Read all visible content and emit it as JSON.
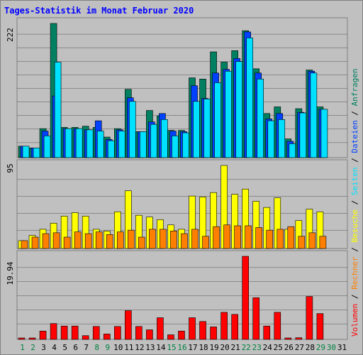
{
  "chart_data": {
    "type": "bar",
    "title": "Tages-Statistik im Monat Februar 2020",
    "colors": {
      "title": "#0000ff",
      "background": "#c0c0c0",
      "panel": "#c0c0c0",
      "grid": "#000000",
      "weekday_label": "#000000",
      "weekend_label": "#008040",
      "anfragen": "#008060",
      "dateien": "#0040ff",
      "seiten": "#00e0ff",
      "besuche": "#ffff00",
      "rechner": "#ff8000",
      "volumen": "#ff0000"
    },
    "days": [
      "1",
      "2",
      "3",
      "4",
      "5",
      "6",
      "7",
      "8",
      "9",
      "10",
      "11",
      "12",
      "13",
      "14",
      "15",
      "16",
      "17",
      "18",
      "19",
      "20",
      "21",
      "22",
      "23",
      "24",
      "25",
      "26",
      "27",
      "28",
      "29",
      "30",
      "31"
    ],
    "weekend_days": [
      "1",
      "2",
      "8",
      "9",
      "15",
      "16",
      "22",
      "23",
      "29",
      "30"
    ],
    "panels": [
      {
        "id": "top",
        "max_label": "222",
        "ymax": 222,
        "series": [
          {
            "name": "Anfragen",
            "values": [
              19,
              16,
              48,
              222,
              50,
              50,
              52,
              50,
              34,
              48,
              113,
              43,
              78,
              69,
              45,
              45,
              132,
              130,
              175,
              158,
              177,
              210,
              147,
              73,
              84,
              31,
              81,
              145,
              84,
              null,
              null
            ]
          },
          {
            "name": "Dateien",
            "values": [
              19,
              16,
              44,
              102,
              48,
              48,
              46,
              61,
              30,
              46,
              99,
              43,
              59,
              73,
              44,
              43,
              119,
              98,
              140,
              146,
              164,
              208,
              140,
              64,
              73,
              27,
              75,
              143,
              80,
              null,
              null
            ]
          },
          {
            "name": "Seiten",
            "values": [
              19,
              16,
              36,
              158,
              48,
              48,
              46,
              44,
              28,
              44,
              93,
              43,
              55,
              63,
              36,
              41,
              93,
              97,
              124,
              143,
              159,
              198,
              130,
              61,
              63,
              23,
              74,
              140,
              80,
              null,
              null
            ]
          }
        ],
        "legend": [
          {
            "text": "Anfragen",
            "color_key": "anfragen"
          },
          {
            "text": "Dateien",
            "color_key": "dateien"
          },
          {
            "text": "Seiten",
            "color_key": "seiten"
          }
        ]
      },
      {
        "id": "middle",
        "max_label": "95",
        "ymax": 95,
        "series": [
          {
            "name": "Besuche",
            "values": [
              9,
              15,
              22,
              29,
              37,
              41,
              37,
              22,
              20,
              42,
              66,
              38,
              36,
              33,
              27,
              22,
              60,
              59,
              64,
              95,
              62,
              68,
              54,
              47,
              58,
              22,
              32,
              45,
              42,
              null,
              null
            ]
          },
          {
            "name": "Rechner",
            "values": [
              9,
              13,
              17,
              18,
              13,
              19,
              17,
              19,
              16,
              19,
              21,
              13,
              22,
              22,
              20,
              17,
              22,
              14,
              25,
              27,
              26,
              26,
              24,
              21,
              22,
              25,
              14,
              18,
              14,
              null,
              null
            ]
          }
        ],
        "legend": [
          {
            "text": "Besuche",
            "color_key": "besuche"
          },
          {
            "text": "Rechner",
            "color_key": "rechner"
          }
        ]
      },
      {
        "id": "bottom",
        "max_label": "19.94",
        "ymax": 19.94,
        "series": [
          {
            "name": "Volumen",
            "values": [
              0.2,
              0.2,
              2.0,
              3.8,
              3.2,
              3.2,
              0.9,
              3.1,
              1.3,
              3.1,
              6.9,
              3.1,
              2.3,
              5.2,
              1.1,
              2.0,
              5.2,
              4.3,
              3.0,
              6.5,
              6.0,
              19.94,
              10.0,
              3.2,
              6.5,
              0.3,
              0.4,
              10.3,
              6.2,
              null,
              null
            ]
          }
        ],
        "legend": [
          {
            "text": "Volumen",
            "color_key": "volumen"
          }
        ]
      }
    ],
    "legend_separator": "/"
  }
}
